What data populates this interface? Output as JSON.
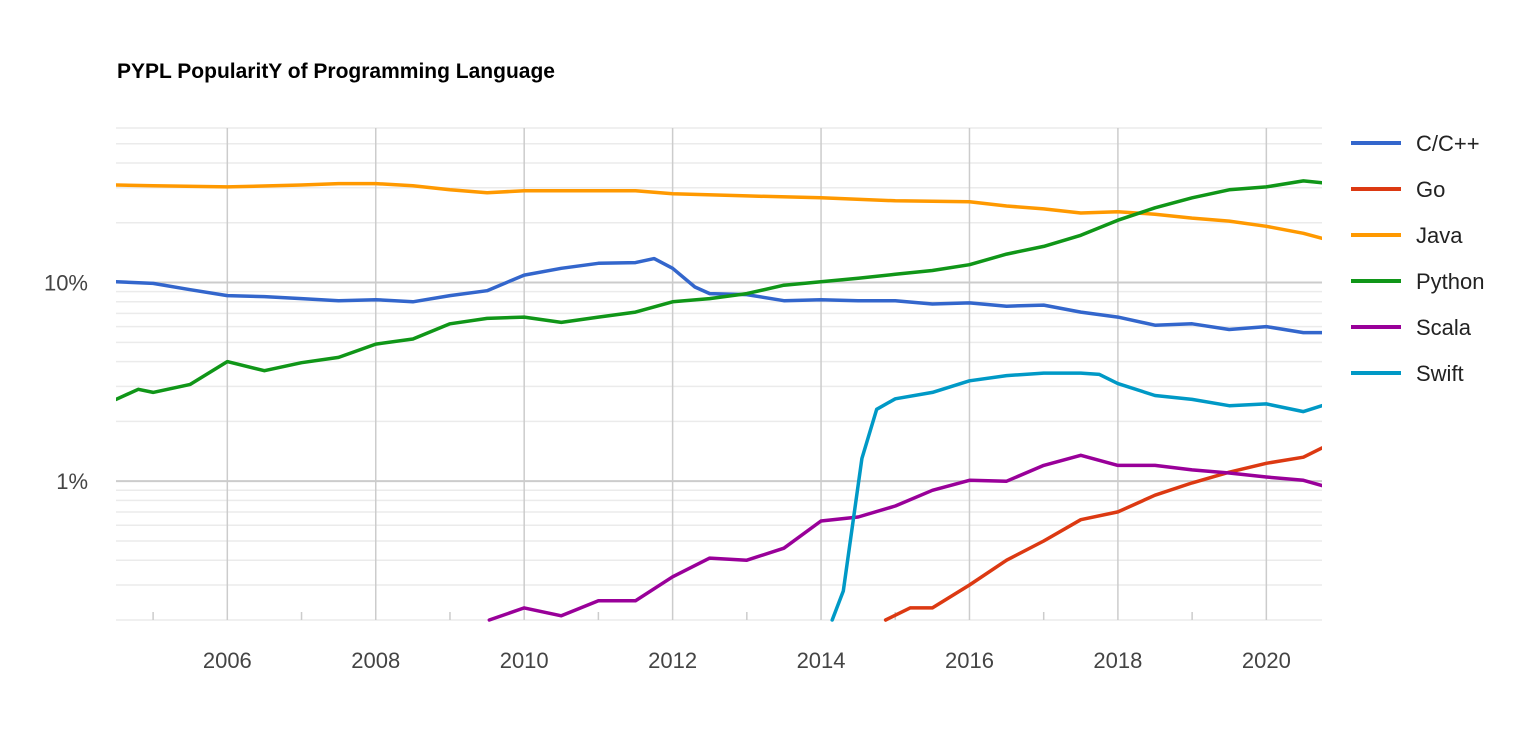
{
  "chart_data": {
    "type": "line",
    "title": "PYPL PopularitY of Programming Language",
    "xlabel": "",
    "ylabel": "",
    "y_scale": "log",
    "ylim": [
      0.2,
      60
    ],
    "xlim": [
      2004.5,
      2020.75
    ],
    "grid": true,
    "legend_position": "right",
    "x_tick_labels": [
      "2006",
      "2008",
      "2010",
      "2012",
      "2014",
      "2016",
      "2018",
      "2020"
    ],
    "y_tick_labels": [
      {
        "value": 10,
        "label": "10%"
      },
      {
        "value": 1,
        "label": "1%"
      }
    ],
    "series": [
      {
        "name": "C/C++",
        "color": "#3366cc",
        "points": [
          [
            2004.5,
            10.1
          ],
          [
            2005,
            9.9
          ],
          [
            2005.5,
            9.2
          ],
          [
            2006,
            8.6
          ],
          [
            2006.5,
            8.5
          ],
          [
            2007,
            8.3
          ],
          [
            2007.5,
            8.1
          ],
          [
            2008,
            8.2
          ],
          [
            2008.5,
            8.0
          ],
          [
            2009,
            8.6
          ],
          [
            2009.5,
            9.1
          ],
          [
            2010,
            10.9
          ],
          [
            2010.5,
            11.8
          ],
          [
            2011,
            12.5
          ],
          [
            2011.5,
            12.6
          ],
          [
            2011.75,
            13.2
          ],
          [
            2012,
            11.8
          ],
          [
            2012.3,
            9.5
          ],
          [
            2012.5,
            8.8
          ],
          [
            2013,
            8.7
          ],
          [
            2013.5,
            8.1
          ],
          [
            2014,
            8.2
          ],
          [
            2014.5,
            8.1
          ],
          [
            2015,
            8.1
          ],
          [
            2015.5,
            7.8
          ],
          [
            2016,
            7.9
          ],
          [
            2016.5,
            7.6
          ],
          [
            2017,
            7.7
          ],
          [
            2017.5,
            7.1
          ],
          [
            2018,
            6.7
          ],
          [
            2018.5,
            6.1
          ],
          [
            2019,
            6.2
          ],
          [
            2019.5,
            5.8
          ],
          [
            2020,
            6.0
          ],
          [
            2020.5,
            5.6
          ],
          [
            2020.75,
            5.6
          ]
        ]
      },
      {
        "name": "Go",
        "color": "#dc3912",
        "points": [
          [
            2014.87,
            0.2
          ],
          [
            2015.2,
            0.23
          ],
          [
            2015.5,
            0.23
          ],
          [
            2016,
            0.3
          ],
          [
            2016.5,
            0.4
          ],
          [
            2017,
            0.5
          ],
          [
            2017.5,
            0.64
          ],
          [
            2018,
            0.7
          ],
          [
            2018.5,
            0.85
          ],
          [
            2019,
            0.98
          ],
          [
            2019.5,
            1.11
          ],
          [
            2020,
            1.23
          ],
          [
            2020.5,
            1.32
          ],
          [
            2020.75,
            1.47
          ]
        ]
      },
      {
        "name": "Java",
        "color": "#ff9900",
        "points": [
          [
            2004.5,
            31
          ],
          [
            2005,
            30.7
          ],
          [
            2006,
            30.3
          ],
          [
            2007,
            31
          ],
          [
            2007.5,
            31.5
          ],
          [
            2008,
            31.5
          ],
          [
            2008.5,
            30.7
          ],
          [
            2009,
            29.3
          ],
          [
            2009.5,
            28.3
          ],
          [
            2010,
            29
          ],
          [
            2011,
            29
          ],
          [
            2011.5,
            29
          ],
          [
            2012,
            28
          ],
          [
            2013,
            27.3
          ],
          [
            2014,
            26.7
          ],
          [
            2015,
            25.8
          ],
          [
            2016,
            25.5
          ],
          [
            2016.5,
            24.3
          ],
          [
            2017,
            23.5
          ],
          [
            2017.5,
            22.4
          ],
          [
            2018,
            22.7
          ],
          [
            2018.5,
            22.1
          ],
          [
            2019,
            21.1
          ],
          [
            2019.5,
            20.4
          ],
          [
            2020,
            19.2
          ],
          [
            2020.5,
            17.7
          ],
          [
            2020.75,
            16.7
          ]
        ]
      },
      {
        "name": "Python",
        "color": "#109618",
        "points": [
          [
            2004.5,
            2.58
          ],
          [
            2004.8,
            2.9
          ],
          [
            2005,
            2.8
          ],
          [
            2005.5,
            3.07
          ],
          [
            2006,
            4.0
          ],
          [
            2006.5,
            3.6
          ],
          [
            2007,
            3.95
          ],
          [
            2007.5,
            4.2
          ],
          [
            2008,
            4.9
          ],
          [
            2008.5,
            5.2
          ],
          [
            2009,
            6.2
          ],
          [
            2009.5,
            6.6
          ],
          [
            2010,
            6.7
          ],
          [
            2010.5,
            6.3
          ],
          [
            2011,
            6.7
          ],
          [
            2011.5,
            7.1
          ],
          [
            2012,
            8.0
          ],
          [
            2012.5,
            8.3
          ],
          [
            2013,
            8.8
          ],
          [
            2013.5,
            9.7
          ],
          [
            2014,
            10.1
          ],
          [
            2014.5,
            10.5
          ],
          [
            2015,
            11.0
          ],
          [
            2015.5,
            11.5
          ],
          [
            2016,
            12.3
          ],
          [
            2016.5,
            13.9
          ],
          [
            2017,
            15.2
          ],
          [
            2017.5,
            17.3
          ],
          [
            2018,
            20.6
          ],
          [
            2018.5,
            23.8
          ],
          [
            2019,
            26.7
          ],
          [
            2019.5,
            29.3
          ],
          [
            2020,
            30.3
          ],
          [
            2020.5,
            32.5
          ],
          [
            2020.75,
            31.8
          ]
        ]
      },
      {
        "name": "Scala",
        "color": "#990099",
        "points": [
          [
            2009.53,
            0.2
          ],
          [
            2010,
            0.23
          ],
          [
            2010.5,
            0.21
          ],
          [
            2011,
            0.25
          ],
          [
            2011.5,
            0.25
          ],
          [
            2012,
            0.33
          ],
          [
            2012.5,
            0.41
          ],
          [
            2013,
            0.4
          ],
          [
            2013.5,
            0.46
          ],
          [
            2014,
            0.63
          ],
          [
            2014.5,
            0.66
          ],
          [
            2015,
            0.75
          ],
          [
            2015.5,
            0.9
          ],
          [
            2016,
            1.01
          ],
          [
            2016.5,
            1.0
          ],
          [
            2017,
            1.2
          ],
          [
            2017.5,
            1.35
          ],
          [
            2018,
            1.2
          ],
          [
            2018.5,
            1.2
          ],
          [
            2019,
            1.14
          ],
          [
            2019.5,
            1.1
          ],
          [
            2020,
            1.05
          ],
          [
            2020.5,
            1.01
          ],
          [
            2020.75,
            0.95
          ]
        ]
      },
      {
        "name": "Swift",
        "color": "#0099c6",
        "points": [
          [
            2014.15,
            0.2
          ],
          [
            2014.3,
            0.28
          ],
          [
            2014.45,
            0.7
          ],
          [
            2014.55,
            1.3
          ],
          [
            2014.75,
            2.3
          ],
          [
            2015,
            2.6
          ],
          [
            2015.5,
            2.8
          ],
          [
            2016,
            3.2
          ],
          [
            2016.5,
            3.4
          ],
          [
            2017,
            3.5
          ],
          [
            2017.5,
            3.5
          ],
          [
            2017.75,
            3.45
          ],
          [
            2018,
            3.1
          ],
          [
            2018.5,
            2.7
          ],
          [
            2019,
            2.58
          ],
          [
            2019.5,
            2.4
          ],
          [
            2020,
            2.45
          ],
          [
            2020.5,
            2.24
          ],
          [
            2020.75,
            2.4
          ]
        ]
      }
    ]
  }
}
